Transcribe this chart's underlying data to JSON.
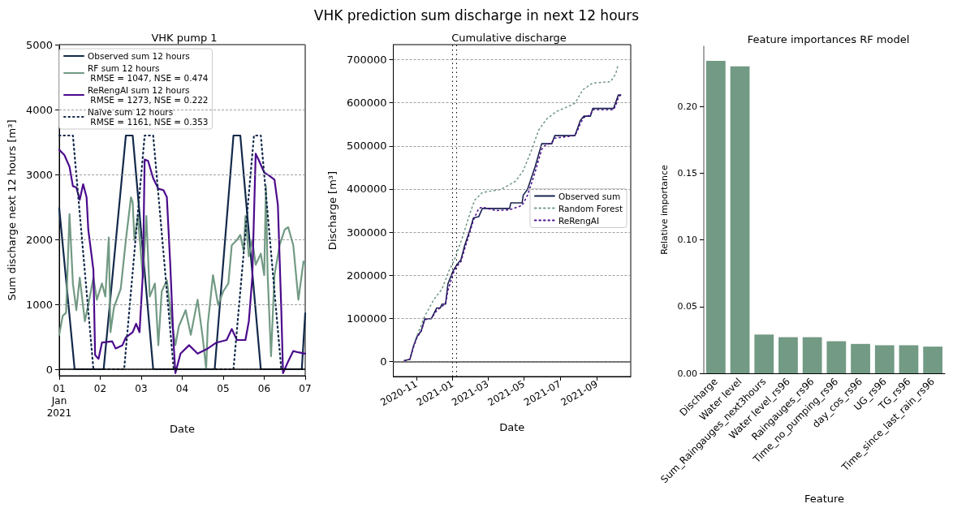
{
  "chart_data": [
    {
      "type": "line",
      "title": "VHK pump 1",
      "xlabel": "Date",
      "ylabel": "Sum discharge next 12 hours [m³]",
      "annotations": [
        "VHK prediction sum discharge in next 12 hours"
      ],
      "xlim": [
        "2021-01-01T00:00",
        "2021-01-07T00:00"
      ],
      "xticks": [
        {
          "value": "2021-01-01",
          "label": "01\nJan\n2021"
        },
        {
          "value": "2021-01-02",
          "label": "02"
        },
        {
          "value": "2021-01-03",
          "label": "03"
        },
        {
          "value": "2021-01-04",
          "label": "04"
        },
        {
          "value": "2021-01-05",
          "label": "05"
        },
        {
          "value": "2021-01-06",
          "label": "06"
        },
        {
          "value": "2021-01-07",
          "label": "07"
        }
      ],
      "ylim": [
        -100,
        5000
      ],
      "yticks": [
        0,
        1000,
        2000,
        3000,
        4000,
        5000
      ],
      "grid": "y",
      "legend": "top left",
      "marker": "none",
      "ref_lines": [
        {
          "axis": "y",
          "value": 0,
          "color": "#000000",
          "line_style": "solid"
        }
      ],
      "series": [
        {
          "name": "Observed sum 12 hours",
          "color": "#12294a",
          "line_style": "solid",
          "x": [
            "2021-01-01T00:00",
            "2021-01-01T09:00",
            "2021-01-02T02:00",
            "2021-01-02T15:00",
            "2021-01-02T19:00",
            "2021-01-03T07:00",
            "2021-01-04T19:00",
            "2021-01-05T06:00",
            "2021-01-05T10:00",
            "2021-01-05T22:00",
            "2021-01-06T22:00",
            "2021-01-07T00:00"
          ],
          "values": [
            2480,
            0,
            0,
            3600,
            3600,
            0,
            0,
            3600,
            3600,
            0,
            0,
            860
          ]
        },
        {
          "name": "RF sum 12 hours\n RMSE = 1047, NSE = 0.474",
          "color": "#729a84",
          "line_style": "solid",
          "x": [
            "2021-01-01T00:00",
            "2021-01-01T02:00",
            "2021-01-01T04:00",
            "2021-01-01T06:00",
            "2021-01-01T08:00",
            "2021-01-01T10:00",
            "2021-01-01T12:00",
            "2021-01-01T15:00",
            "2021-01-01T17:00",
            "2021-01-01T20:00",
            "2021-01-01T22:00",
            "2021-01-02T01:00",
            "2021-01-02T03:00",
            "2021-01-02T05:00",
            "2021-01-02T06:00",
            "2021-01-02T08:00",
            "2021-01-02T12:00",
            "2021-01-02T15:00",
            "2021-01-02T18:00",
            "2021-01-02T19:00",
            "2021-01-02T20:00",
            "2021-01-02T22:00",
            "2021-01-03T01:00",
            "2021-01-03T03:00",
            "2021-01-03T05:00",
            "2021-01-03T08:00",
            "2021-01-03T10:00",
            "2021-01-03T12:00",
            "2021-01-03T15:00",
            "2021-01-03T18:00",
            "2021-01-03T20:00",
            "2021-01-03T22:00",
            "2021-01-04T02:00",
            "2021-01-04T05:00",
            "2021-01-04T09:00",
            "2021-01-04T12:00",
            "2021-01-04T14:00",
            "2021-01-04T15:00",
            "2021-01-04T18:00",
            "2021-01-04T21:00",
            "2021-01-05T00:00",
            "2021-01-05T03:00",
            "2021-01-05T05:00",
            "2021-01-05T08:00",
            "2021-01-05T10:00",
            "2021-01-05T12:00",
            "2021-01-05T13:00",
            "2021-01-05T15:00",
            "2021-01-05T17:00",
            "2021-01-05T19:00",
            "2021-01-05T22:00",
            "2021-01-06T00:00",
            "2021-01-06T01:00",
            "2021-01-06T02:00",
            "2021-01-06T04:00",
            "2021-01-06T06:00",
            "2021-01-06T09:00",
            "2021-01-06T12:00",
            "2021-01-06T14:00",
            "2021-01-06T17:00",
            "2021-01-06T20:00",
            "2021-01-06T23:00",
            "2021-01-07T00:00"
          ],
          "values": [
            530,
            820,
            870,
            2390,
            1320,
            910,
            1410,
            740,
            990,
            1410,
            1070,
            1320,
            1120,
            2030,
            570,
            950,
            1240,
            1990,
            2650,
            2570,
            1990,
            2360,
            1410,
            2360,
            1120,
            1320,
            370,
            1200,
            1370,
            700,
            370,
            660,
            910,
            530,
            1070,
            490,
            0,
            700,
            1450,
            990,
            1200,
            1320,
            1910,
            1990,
            2070,
            1820,
            2360,
            1740,
            1990,
            1610,
            1780,
            1450,
            2820,
            1450,
            200,
            1450,
            1910,
            2150,
            2190,
            1910,
            1070,
            1660,
            1610
          ]
        },
        {
          "name": "ReRengAI sum 12 hours\n RMSE = 1273, NSE = 0.222",
          "color": "#4b0b8c",
          "line_style": "solid",
          "x": [
            "2021-01-01T00:00",
            "2021-01-01T03:00",
            "2021-01-01T06:00",
            "2021-01-01T08:00",
            "2021-01-01T10:00",
            "2021-01-01T12:00",
            "2021-01-01T14:00",
            "2021-01-01T16:00",
            "2021-01-01T17:00",
            "2021-01-01T20:00",
            "2021-01-01T21:00",
            "2021-01-01T23:00",
            "2021-01-02T01:00",
            "2021-01-02T07:00",
            "2021-01-02T09:00",
            "2021-01-02T13:00",
            "2021-01-02T15:00",
            "2021-01-02T19:00",
            "2021-01-02T21:00",
            "2021-01-02T23:00",
            "2021-01-03T01:00",
            "2021-01-03T02:00",
            "2021-01-03T04:00",
            "2021-01-03T07:00",
            "2021-01-03T10:00",
            "2021-01-03T13:00",
            "2021-01-03T15:00",
            "2021-01-03T17:00",
            "2021-01-03T19:00",
            "2021-01-03T20:00",
            "2021-01-03T23:00",
            "2021-01-04T04:00",
            "2021-01-04T09:00",
            "2021-01-04T15:00",
            "2021-01-04T20:00",
            "2021-01-05T02:00",
            "2021-01-05T05:00",
            "2021-01-05T08:00",
            "2021-01-05T13:00",
            "2021-01-05T15:00",
            "2021-01-05T17:00",
            "2021-01-05T19:00",
            "2021-01-05T21:00",
            "2021-01-06T00:00",
            "2021-01-06T03:00",
            "2021-01-06T06:00",
            "2021-01-06T08:00",
            "2021-01-06T10:00",
            "2021-01-06T11:00",
            "2021-01-06T14:00",
            "2021-01-06T17:00",
            "2021-01-06T20:00",
            "2021-01-07T00:00"
          ],
          "values": [
            3380,
            3300,
            3120,
            2820,
            2800,
            2610,
            2850,
            2650,
            2150,
            1530,
            220,
            160,
            410,
            430,
            320,
            370,
            490,
            570,
            700,
            570,
            1490,
            3230,
            3210,
            2940,
            2780,
            2760,
            2650,
            1610,
            370,
            -60,
            240,
            370,
            240,
            320,
            410,
            450,
            620,
            450,
            450,
            740,
            1410,
            3320,
            3210,
            3030,
            2980,
            2920,
            2530,
            910,
            -60,
            120,
            280,
            260,
            240
          ]
        },
        {
          "name": "Naïve sum 12 hours\n RMSE = 1161, NSE = 0.353",
          "color": "#12294a",
          "line_style": "dotted",
          "x": [
            "2021-01-01T00:00",
            "2021-01-01T08:00",
            "2021-01-01T20:00",
            "2021-01-02T14:00",
            "2021-01-03T02:00",
            "2021-01-03T07:00",
            "2021-01-03T19:00",
            "2021-01-05T06:00",
            "2021-01-05T18:00",
            "2021-01-05T22:00",
            "2021-01-06T10:00",
            "2021-01-07T00:00"
          ],
          "values": [
            3600,
            3600,
            0,
            0,
            3600,
            3600,
            0,
            0,
            3600,
            3600,
            0,
            0
          ]
        }
      ]
    },
    {
      "type": "line",
      "title": "Cumulative discharge",
      "xlabel": "Date",
      "ylabel": "Discharge [m³]",
      "xlim": [
        "2020-09-23",
        "2021-10-28"
      ],
      "xticks": [
        {
          "value": "2020-11-01",
          "label": "2020-11"
        },
        {
          "value": "2021-01-01",
          "label": "2021-01"
        },
        {
          "value": "2021-03-01",
          "label": "2021-03"
        },
        {
          "value": "2021-05-01",
          "label": "2021-05"
        },
        {
          "value": "2021-07-01",
          "label": "2021-07"
        },
        {
          "value": "2021-09-01",
          "label": "2021-09"
        }
      ],
      "ylim": [
        -35000,
        735000
      ],
      "yticks": [
        0,
        100000,
        200000,
        300000,
        400000,
        500000,
        600000,
        700000
      ],
      "grid": "y",
      "legend": "right",
      "marker": "none",
      "ref_lines": [
        {
          "axis": "y",
          "value": 0,
          "color": "#555555",
          "line_style": "solid"
        },
        {
          "axis": "x",
          "value": "2021-01-01",
          "color": "#000000",
          "line_style": "dotted"
        },
        {
          "axis": "x",
          "value": "2021-01-07",
          "color": "#000000",
          "line_style": "dotted"
        }
      ],
      "series": [
        {
          "name": "Observed sum",
          "color": "#1a2450",
          "line_style": "solid",
          "x": [
            "2020-10-12",
            "2020-10-21",
            "2020-10-27",
            "2020-11-02",
            "2020-11-09",
            "2020-11-15",
            "2020-11-26",
            "2020-12-05",
            "2020-12-11",
            "2020-12-14",
            "2020-12-20",
            "2020-12-24",
            "2021-01-02",
            "2021-01-08",
            "2021-01-15",
            "2021-01-21",
            "2021-01-30",
            "2021-02-05",
            "2021-02-14",
            "2021-02-20",
            "2021-04-07",
            "2021-04-09",
            "2021-04-28",
            "2021-04-30",
            "2021-05-07",
            "2021-05-20",
            "2021-05-31",
            "2021-06-17",
            "2021-06-22",
            "2021-07-26",
            "2021-07-31",
            "2021-08-04",
            "2021-08-10",
            "2021-08-21",
            "2021-08-25",
            "2021-09-29",
            "2021-10-03",
            "2021-10-07",
            "2021-10-11"
          ],
          "values": [
            2000,
            5000,
            36000,
            58000,
            71000,
            99000,
            99000,
            124000,
            124000,
            133000,
            133000,
            180000,
            211000,
            224000,
            236000,
            268000,
            305000,
            333000,
            336000,
            355000,
            355000,
            368000,
            368000,
            386000,
            399000,
            452000,
            505000,
            505000,
            524000,
            524000,
            543000,
            559000,
            569000,
            569000,
            587000,
            587000,
            602000,
            618000,
            618000
          ]
        },
        {
          "name": "Random Forest",
          "color": "#729a84",
          "line_style": "dotted",
          "x": [
            "2020-10-12",
            "2020-10-21",
            "2020-10-27",
            "2020-11-02",
            "2020-11-15",
            "2020-11-30",
            "2020-12-14",
            "2020-12-26",
            "2021-01-04",
            "2021-01-17",
            "2021-01-30",
            "2021-02-07",
            "2021-02-20",
            "2021-03-23",
            "2021-04-17",
            "2021-04-30",
            "2021-05-13",
            "2021-05-26",
            "2021-06-08",
            "2021-06-25",
            "2021-07-17",
            "2021-07-26",
            "2021-08-08",
            "2021-08-25",
            "2021-09-24",
            "2021-10-03",
            "2021-10-07"
          ],
          "values": [
            2000,
            5000,
            36000,
            60000,
            105000,
            143000,
            168000,
            211000,
            236000,
            286000,
            343000,
            374000,
            392000,
            399000,
            418000,
            443000,
            487000,
            537000,
            562000,
            580000,
            593000,
            599000,
            630000,
            646000,
            649000,
            668000,
            690000
          ]
        },
        {
          "name": "ReRengAI",
          "color": "#4b0b8c",
          "line_style": "dotted",
          "x": [
            "2020-10-12",
            "2020-10-21",
            "2020-10-27",
            "2020-11-02",
            "2020-11-09",
            "2020-11-15",
            "2020-11-26",
            "2020-12-05",
            "2020-12-14",
            "2020-12-20",
            "2020-12-24",
            "2021-01-02",
            "2021-01-08",
            "2021-01-15",
            "2021-01-21",
            "2021-01-30",
            "2021-02-05",
            "2021-02-14",
            "2021-02-20",
            "2021-03-15",
            "2021-04-07",
            "2021-04-28",
            "2021-05-07",
            "2021-05-20",
            "2021-05-31",
            "2021-06-05",
            "2021-06-17",
            "2021-06-22",
            "2021-07-26",
            "2021-07-31",
            "2021-08-04",
            "2021-08-10",
            "2021-08-21",
            "2021-08-25",
            "2021-09-29",
            "2021-10-03",
            "2021-10-07",
            "2021-10-11"
          ],
          "values": [
            2000,
            5000,
            33000,
            56000,
            70000,
            97000,
            100000,
            118000,
            128000,
            134000,
            165000,
            205000,
            220000,
            232000,
            260000,
            300000,
            328000,
            355000,
            358000,
            350000,
            352000,
            362000,
            385000,
            440000,
            492000,
            500000,
            508000,
            518000,
            524000,
            538000,
            552000,
            566000,
            572000,
            584000,
            584000,
            595000,
            612000,
            618000
          ]
        }
      ]
    },
    {
      "type": "bar",
      "title": "Feature importances RF model",
      "xlabel": "Feature",
      "ylabel": "Relative importance",
      "categories": [
        "Discharge",
        "Water level",
        "Sum_Raingauges_next3hours",
        "Water level_rs96",
        "Raingauges_rs96",
        "Time_no_pumping_rs96",
        "day_cos_rs96",
        "UG_rs96",
        "TG_rs96",
        "Time_since_last_rain_rs96"
      ],
      "values": [
        0.234,
        0.23,
        0.029,
        0.027,
        0.027,
        0.024,
        0.022,
        0.021,
        0.021,
        0.02
      ],
      "color": "#729a84",
      "ylim": [
        0,
        0.245
      ],
      "yticks": [
        {
          "value": 0,
          "label": "0.00"
        },
        {
          "value": 0.05,
          "label": "0.05"
        },
        {
          "value": 0.1,
          "label": "0.10"
        },
        {
          "value": 0.15,
          "label": "0.15"
        },
        {
          "value": 0.2,
          "label": "0.20"
        }
      ],
      "grid": false
    }
  ]
}
